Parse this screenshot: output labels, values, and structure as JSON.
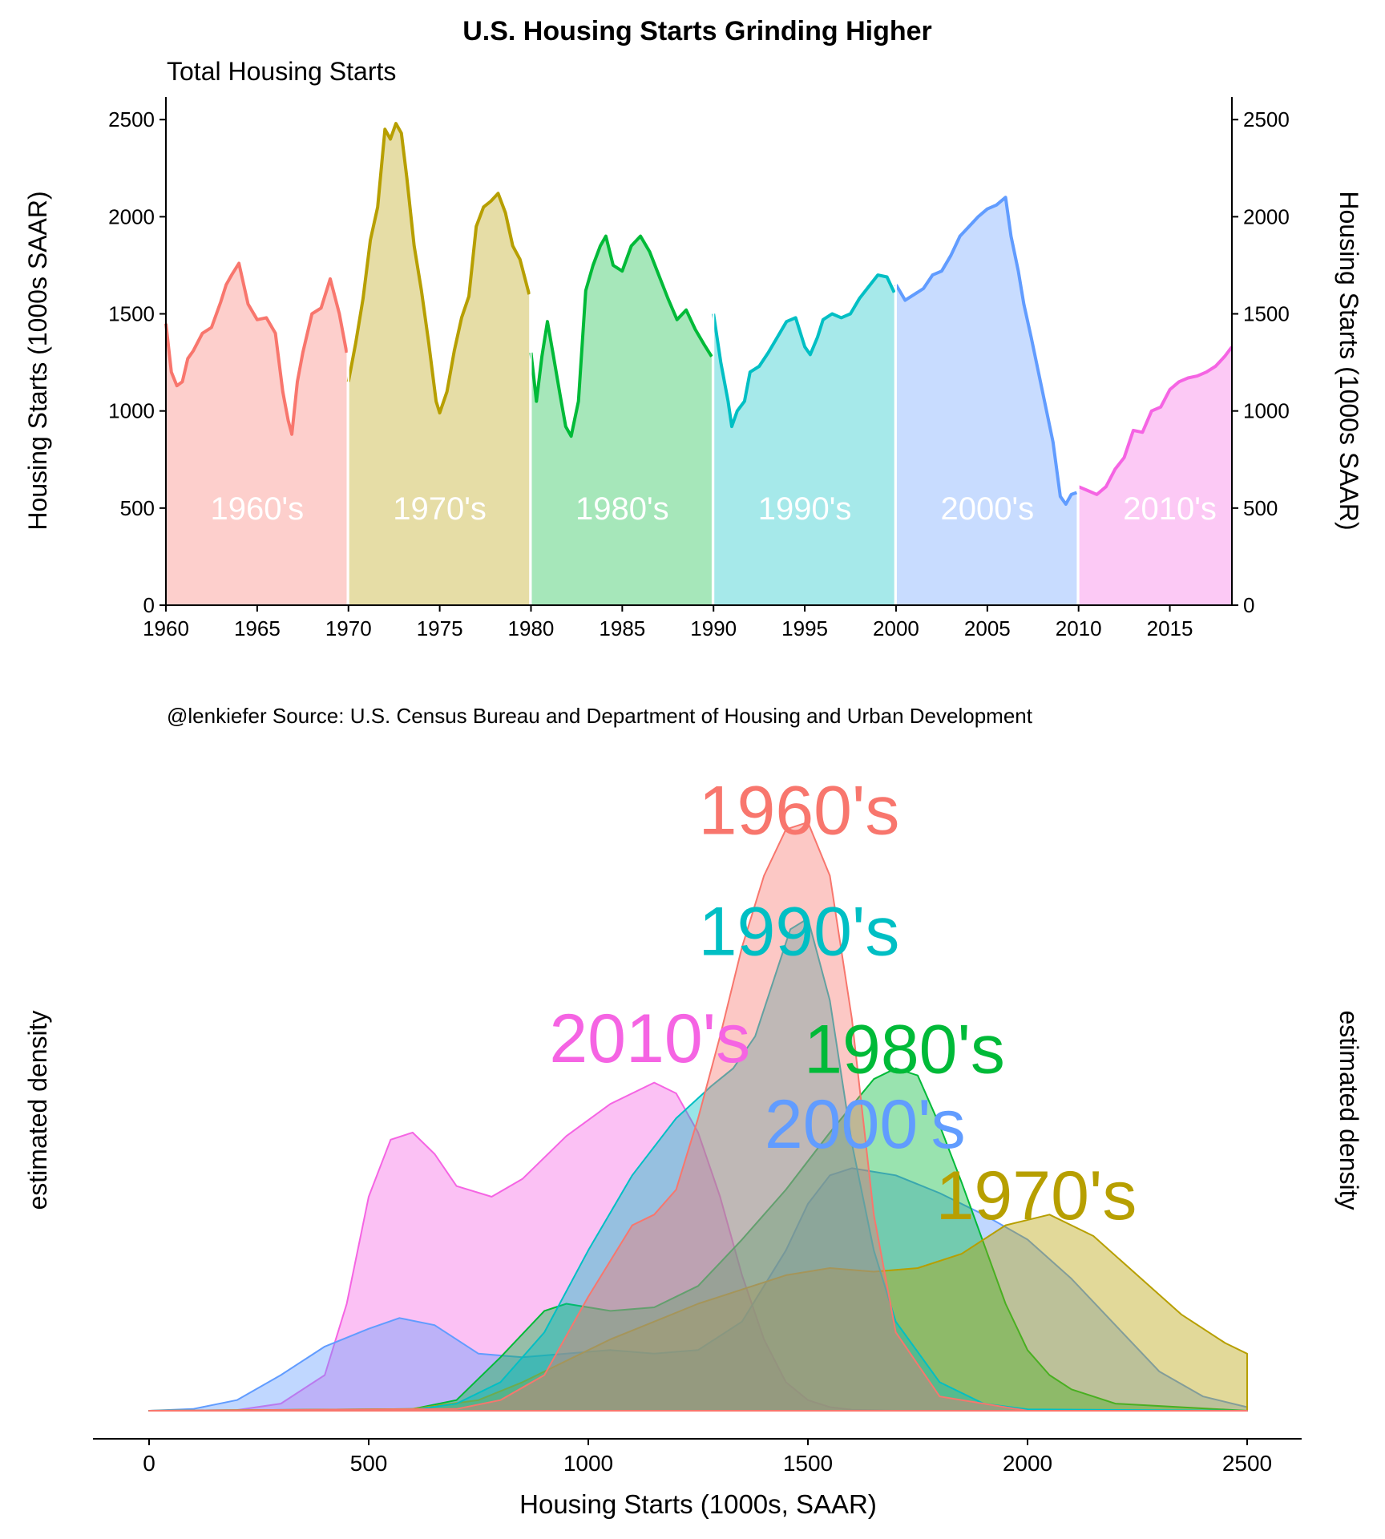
{
  "title": "U.S. Housing Starts Grinding Higher",
  "subtitle": "Total Housing Starts",
  "caption": "@lenkiefer   Source: U.S. Census Bureau and Department of Housing and Urban Development",
  "colors": {
    "1960s": "#F8766D",
    "1970s": "#B79F00",
    "1980s": "#00BA38",
    "1990s": "#00BFC4",
    "2000s": "#619CFF",
    "2010s": "#F564E3"
  },
  "chart_data": [
    {
      "type": "area",
      "subtitle": "Total Housing Starts",
      "ylabel_left": "Housing Starts (1000s SAAR)",
      "ylabel_right": "Housing Starts (1000s SAAR)",
      "xlim": [
        1960,
        2018.4
      ],
      "ylim": [
        0,
        2600
      ],
      "x_ticks": [
        "1960",
        "1965",
        "1970",
        "1975",
        "1980",
        "1985",
        "1990",
        "1995",
        "2000",
        "2005",
        "2010",
        "2015"
      ],
      "y_ticks": [
        "0",
        "500",
        "1000",
        "1500",
        "2000",
        "2500"
      ],
      "grid": false,
      "series": [
        {
          "name": "1960's",
          "key": "1960s",
          "x": [
            1960.0,
            1960.3,
            1960.6,
            1960.9,
            1961.2,
            1961.5,
            1962.0,
            1962.5,
            1963.0,
            1963.3,
            1963.6,
            1964.0,
            1964.5,
            1965.0,
            1965.5,
            1966.0,
            1966.4,
            1966.7,
            1966.9,
            1967.2,
            1967.5,
            1968.0,
            1968.5,
            1969.0,
            1969.5,
            1969.9
          ],
          "y": [
            1450,
            1200,
            1130,
            1150,
            1270,
            1310,
            1400,
            1430,
            1560,
            1650,
            1700,
            1760,
            1550,
            1470,
            1480,
            1400,
            1100,
            950,
            880,
            1150,
            1300,
            1500,
            1530,
            1680,
            1500,
            1300
          ]
        },
        {
          "name": "1970's",
          "key": "1970s",
          "x": [
            1970.0,
            1970.4,
            1970.8,
            1971.2,
            1971.6,
            1972.0,
            1972.3,
            1972.6,
            1972.9,
            1973.2,
            1973.6,
            1974.0,
            1974.4,
            1974.8,
            1975.0,
            1975.4,
            1975.8,
            1976.2,
            1976.6,
            1977.0,
            1977.4,
            1977.8,
            1978.2,
            1978.6,
            1979.0,
            1979.4,
            1979.9
          ],
          "y": [
            1150,
            1350,
            1580,
            1880,
            2050,
            2450,
            2400,
            2480,
            2430,
            2200,
            1850,
            1620,
            1350,
            1050,
            990,
            1100,
            1310,
            1480,
            1590,
            1950,
            2050,
            2080,
            2120,
            2020,
            1850,
            1780,
            1600
          ]
        },
        {
          "name": "1980's",
          "key": "1980s",
          "x": [
            1980.0,
            1980.3,
            1980.6,
            1980.9,
            1981.2,
            1981.6,
            1981.9,
            1982.2,
            1982.6,
            1983.0,
            1983.4,
            1983.8,
            1984.1,
            1984.5,
            1985.0,
            1985.5,
            1986.0,
            1986.5,
            1987.0,
            1987.5,
            1988.0,
            1988.5,
            1989.0,
            1989.5,
            1989.9
          ],
          "y": [
            1300,
            1050,
            1280,
            1460,
            1300,
            1080,
            920,
            870,
            1050,
            1620,
            1750,
            1850,
            1900,
            1750,
            1720,
            1850,
            1900,
            1820,
            1700,
            1580,
            1470,
            1520,
            1420,
            1340,
            1280
          ]
        },
        {
          "name": "1990's",
          "key": "1990s",
          "x": [
            1990.0,
            1990.4,
            1990.8,
            1991.0,
            1991.3,
            1991.7,
            1992.0,
            1992.5,
            1993.0,
            1993.5,
            1994.0,
            1994.5,
            1995.0,
            1995.3,
            1995.7,
            1996.0,
            1996.5,
            1997.0,
            1997.5,
            1998.0,
            1998.5,
            1999.0,
            1999.5,
            1999.9
          ],
          "y": [
            1500,
            1250,
            1050,
            920,
            1000,
            1050,
            1200,
            1230,
            1300,
            1380,
            1460,
            1480,
            1330,
            1290,
            1380,
            1470,
            1500,
            1480,
            1500,
            1580,
            1640,
            1700,
            1690,
            1610
          ]
        },
        {
          "name": "2000's",
          "key": "2000s",
          "x": [
            2000.0,
            2000.5,
            2001.0,
            2001.5,
            2002.0,
            2002.5,
            2003.0,
            2003.5,
            2004.0,
            2004.5,
            2005.0,
            2005.5,
            2006.0,
            2006.3,
            2006.7,
            2007.0,
            2007.4,
            2007.8,
            2008.2,
            2008.6,
            2009.0,
            2009.3,
            2009.6,
            2009.9
          ],
          "y": [
            1650,
            1570,
            1600,
            1630,
            1700,
            1720,
            1800,
            1900,
            1950,
            2000,
            2040,
            2060,
            2100,
            1900,
            1720,
            1550,
            1380,
            1200,
            1020,
            840,
            560,
            520,
            570,
            580
          ]
        },
        {
          "name": "2010's",
          "key": "2010s",
          "x": [
            2010.0,
            2010.5,
            2011.0,
            2011.5,
            2012.0,
            2012.5,
            2013.0,
            2013.5,
            2014.0,
            2014.5,
            2015.0,
            2015.5,
            2016.0,
            2016.5,
            2017.0,
            2017.5,
            2018.0,
            2018.4
          ],
          "y": [
            610,
            590,
            570,
            610,
            700,
            760,
            900,
            890,
            1000,
            1020,
            1110,
            1150,
            1170,
            1180,
            1200,
            1230,
            1280,
            1330
          ]
        }
      ],
      "annotations": [
        {
          "text": "1960's",
          "x": 1965
        },
        {
          "text": "1970's",
          "x": 1975
        },
        {
          "text": "1980's",
          "x": 1985
        },
        {
          "text": "1990's",
          "x": 1995
        },
        {
          "text": "2000's",
          "x": 2005
        },
        {
          "text": "2010's",
          "x": 2015
        }
      ]
    },
    {
      "type": "area",
      "xlabel": "Housing Starts (1000s, SAAR)",
      "ylabel_left": "estimated density",
      "ylabel_right": "estimated density",
      "xlim": [
        0,
        2500
      ],
      "x_ticks": [
        "0",
        "500",
        "1000",
        "1500",
        "2000",
        "2500"
      ],
      "grid": false,
      "series": [
        {
          "name": "2010's",
          "key": "2010s",
          "x": [
            0,
            200,
            300,
            400,
            450,
            500,
            550,
            600,
            650,
            700,
            780,
            850,
            950,
            1050,
            1150,
            1200,
            1250,
            1300,
            1350,
            1400,
            1450,
            1500,
            1550,
            1600,
            1700,
            2000,
            2500
          ],
          "y": [
            0,
            0.002,
            0.02,
            0.1,
            0.3,
            0.6,
            0.76,
            0.78,
            0.72,
            0.63,
            0.6,
            0.65,
            0.77,
            0.86,
            0.92,
            0.89,
            0.78,
            0.6,
            0.38,
            0.2,
            0.08,
            0.03,
            0.01,
            0.003,
            0,
            0,
            0
          ]
        },
        {
          "name": "2000's",
          "key": "2000s",
          "x": [
            0,
            100,
            200,
            300,
            400,
            500,
            570,
            650,
            750,
            850,
            950,
            1050,
            1150,
            1250,
            1350,
            1450,
            1500,
            1550,
            1600,
            1700,
            1800,
            1900,
            2000,
            2100,
            2200,
            2300,
            2400,
            2500
          ],
          "y": [
            0,
            0.005,
            0.03,
            0.1,
            0.18,
            0.23,
            0.26,
            0.24,
            0.16,
            0.15,
            0.16,
            0.17,
            0.16,
            0.17,
            0.25,
            0.45,
            0.58,
            0.66,
            0.68,
            0.66,
            0.61,
            0.55,
            0.48,
            0.37,
            0.24,
            0.11,
            0.04,
            0.01
          ]
        },
        {
          "name": "1980's",
          "key": "1980s",
          "x": [
            0,
            600,
            700,
            800,
            900,
            950,
            1050,
            1150,
            1250,
            1350,
            1450,
            1550,
            1650,
            1700,
            1750,
            1800,
            1850,
            1900,
            1950,
            2000,
            2050,
            2100,
            2200,
            2500
          ],
          "y": [
            0,
            0.005,
            0.03,
            0.15,
            0.28,
            0.3,
            0.28,
            0.29,
            0.35,
            0.48,
            0.62,
            0.78,
            0.93,
            0.96,
            0.94,
            0.8,
            0.64,
            0.47,
            0.3,
            0.17,
            0.1,
            0.06,
            0.02,
            0
          ]
        },
        {
          "name": "1970's",
          "key": "1970s",
          "x": [
            0,
            600,
            750,
            850,
            950,
            1050,
            1150,
            1250,
            1350,
            1450,
            1550,
            1650,
            1750,
            1850,
            1950,
            2050,
            2150,
            2250,
            2350,
            2450,
            2500
          ],
          "y": [
            0,
            0.005,
            0.03,
            0.08,
            0.14,
            0.2,
            0.25,
            0.3,
            0.34,
            0.38,
            0.4,
            0.39,
            0.4,
            0.44,
            0.52,
            0.55,
            0.49,
            0.38,
            0.27,
            0.19,
            0.16
          ]
        },
        {
          "name": "1990's",
          "key": "1990s",
          "x": [
            0,
            600,
            700,
            800,
            900,
            1000,
            1100,
            1200,
            1280,
            1330,
            1380,
            1420,
            1460,
            1500,
            1550,
            1600,
            1650,
            1700,
            1800,
            1900,
            2000,
            2500
          ],
          "y": [
            0,
            0.003,
            0.02,
            0.08,
            0.22,
            0.45,
            0.66,
            0.82,
            0.91,
            0.96,
            1.05,
            1.2,
            1.35,
            1.38,
            1.15,
            0.75,
            0.45,
            0.25,
            0.08,
            0.02,
            0.004,
            0
          ]
        },
        {
          "name": "1960's",
          "key": "1960s",
          "x": [
            0,
            700,
            800,
            900,
            1000,
            1100,
            1150,
            1200,
            1250,
            1300,
            1350,
            1400,
            1450,
            1500,
            1550,
            1600,
            1650,
            1700,
            1800,
            2000,
            2500
          ],
          "y": [
            0,
            0.005,
            0.03,
            0.1,
            0.32,
            0.52,
            0.55,
            0.62,
            0.82,
            1.05,
            1.3,
            1.5,
            1.63,
            1.65,
            1.5,
            1.1,
            0.55,
            0.22,
            0.04,
            0,
            0
          ]
        }
      ],
      "annotations": [
        {
          "text": "1960's",
          "key": "1960s",
          "x": 1480,
          "y": 1.68
        },
        {
          "text": "1990's",
          "key": "1990s",
          "x": 1480,
          "y": 1.34
        },
        {
          "text": "2010's",
          "key": "2010s",
          "x": 1140,
          "y": 1.04
        },
        {
          "text": "1980's",
          "key": "1980s",
          "x": 1720,
          "y": 1.01
        },
        {
          "text": "2000's",
          "key": "2000s",
          "x": 1630,
          "y": 0.8
        },
        {
          "text": "1970's",
          "key": "1970s",
          "x": 2020,
          "y": 0.6
        }
      ]
    }
  ]
}
